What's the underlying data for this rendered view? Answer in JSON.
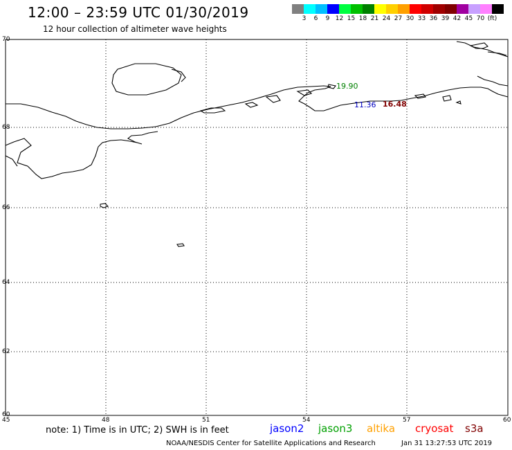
{
  "header": {
    "title": "12:00 – 23:59 UTC 01/30/2019",
    "subtitle": "12 hour collection of altimeter wave heights"
  },
  "legend": {
    "colors": [
      "#808080",
      "#00ffff",
      "#00bfff",
      "#0000ff",
      "#00ff40",
      "#00c000",
      "#008000",
      "#ffff00",
      "#ffd000",
      "#ffa000",
      "#ff0000",
      "#d00000",
      "#a00000",
      "#800000",
      "#a000a0",
      "#c8a0ff",
      "#ff80ff",
      "#000000"
    ],
    "labels": [
      "3",
      "6",
      "9",
      "12",
      "15",
      "18",
      "21",
      "24",
      "27",
      "30",
      "33",
      "36",
      "39",
      "42",
      "45",
      "70",
      "(ft)"
    ]
  },
  "axes": {
    "lat_labels": [
      "70",
      "68",
      "66",
      "64",
      "62",
      "60"
    ],
    "lon_labels": [
      "45",
      "48",
      "51",
      "54",
      "57",
      "60"
    ]
  },
  "observations": [
    {
      "value": "19.90",
      "color": "#008000"
    },
    {
      "value": "11.36",
      "color": "#0000c0"
    },
    {
      "value": "16.48",
      "color": "#800000"
    }
  ],
  "footer": {
    "note": "note: 1) Time is in UTC; 2) SWH is in feet",
    "satellites": [
      {
        "name": "jason2",
        "color": "#0000ff"
      },
      {
        "name": "jason3",
        "color": "#00a000"
      },
      {
        "name": "altika",
        "color": "#ffa000"
      },
      {
        "name": "cryosat",
        "color": "#ff0000"
      },
      {
        "name": "s3a",
        "color": "#800000"
      }
    ],
    "credit": "NOAA/NESDIS Center for Satellite Applications and Research",
    "timestamp": "Jan 31 13:27:53 UTC 2019"
  }
}
